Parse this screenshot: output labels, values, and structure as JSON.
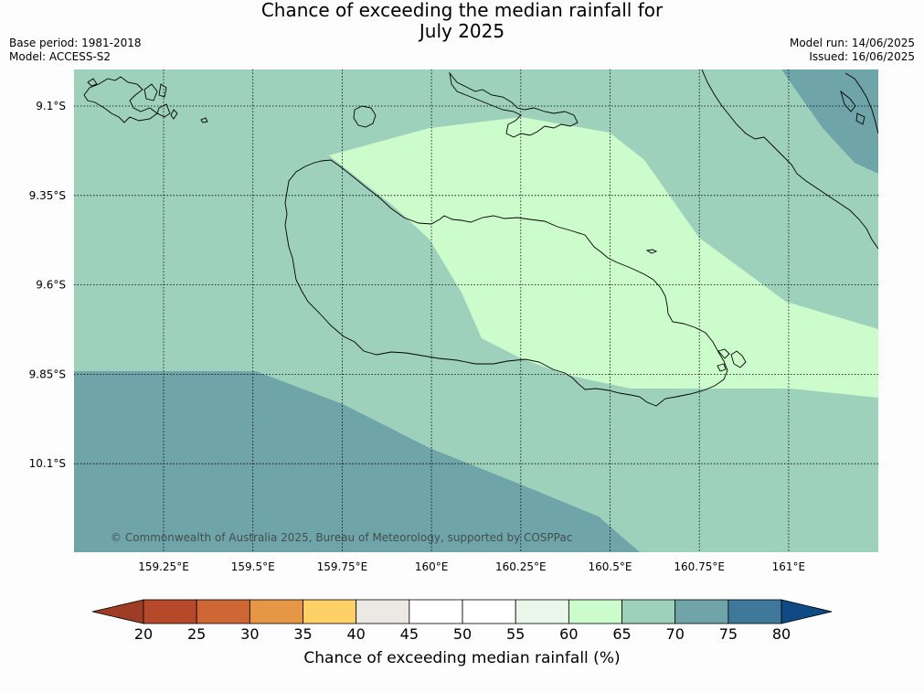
{
  "title": {
    "line1": "Chance of exceeding the median rainfall for",
    "line2": "July 2025"
  },
  "meta": {
    "base_period": "Base period: 1981-2018",
    "model": "Model: ACCESS-S2",
    "model_run": "Model run: 14/06/2025",
    "issued": "Issued: 16/06/2025"
  },
  "map": {
    "lon_ticks": [
      "159.25°E",
      "159.5°E",
      "159.75°E",
      "160°E",
      "160.25°E",
      "160.5°E",
      "160.75°E",
      "161°E"
    ],
    "lat_ticks": [
      "9.1°S",
      "9.35°S",
      "9.6°S",
      "9.85°S",
      "10.1°S"
    ],
    "copyright": "© Commonwealth of Australia 2025, Bureau of Meteorology, supported by COSPPac",
    "zone_colors": {
      "60-65": "#ccfccc",
      "65-70": "#9dd1bb",
      "70-75": "#6fa4a8"
    }
  },
  "colorbar": {
    "label": "Chance of exceeding median rainfall (%)",
    "ticks": [
      "20",
      "25",
      "30",
      "35",
      "40",
      "45",
      "50",
      "55",
      "60",
      "65",
      "70",
      "75",
      "80"
    ],
    "colors": [
      "#9e3d26",
      "#b5492a",
      "#cf6635",
      "#e59746",
      "#fed167",
      "#ece9e4",
      "#ffffff",
      "#ffffff",
      "#eaf6ea",
      "#ccfccc",
      "#9dd1bb",
      "#6fa4a8",
      "#3f7899",
      "#0f4a84"
    ]
  }
}
